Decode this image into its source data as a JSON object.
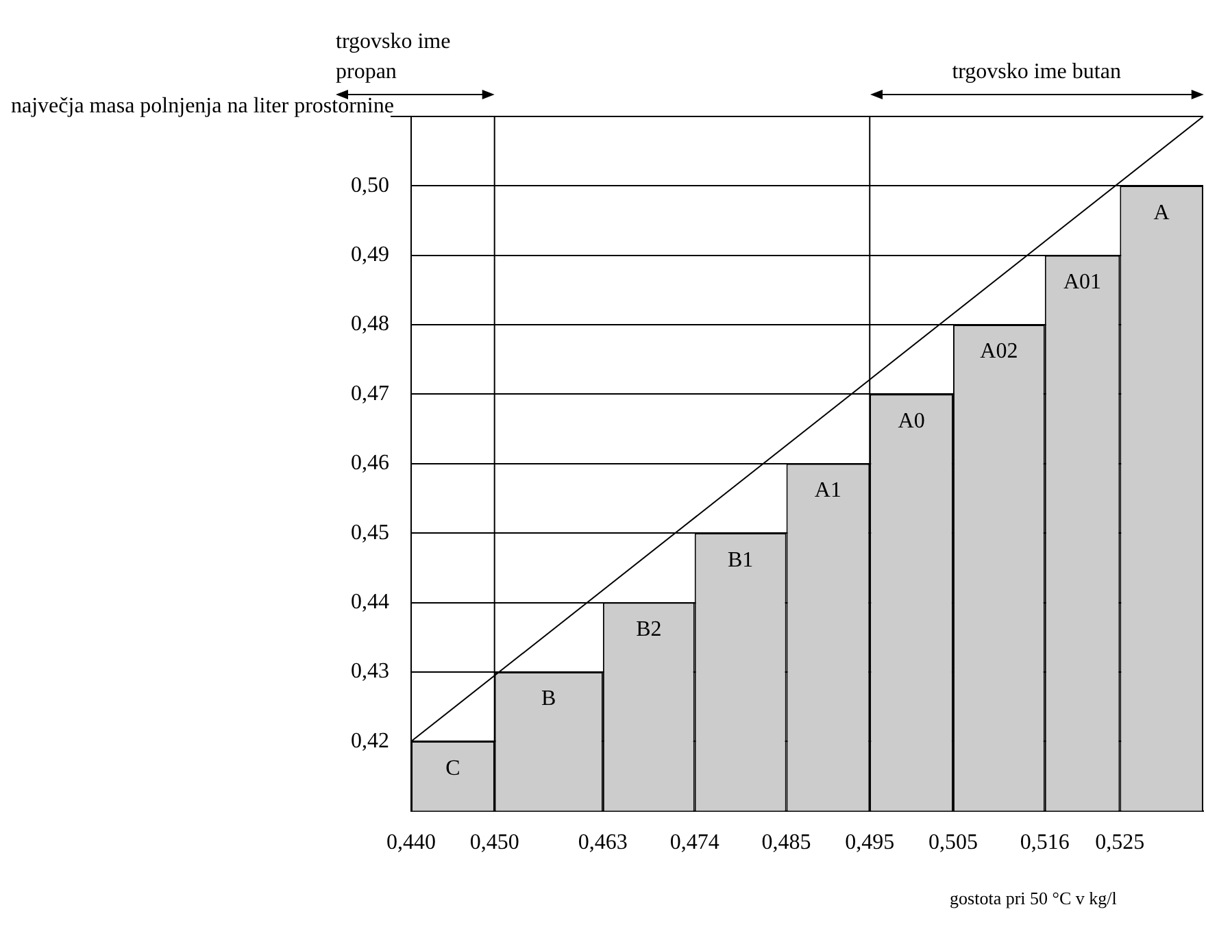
{
  "chart_data": {
    "type": "histogram",
    "title": "največja masa polnjenja na liter prostornine",
    "xlabel": "gostota pri 50 °C v kg/l",
    "bins": [
      0.44,
      0.45,
      0.463,
      0.474,
      0.485,
      0.495,
      0.505,
      0.516,
      0.525,
      0.535
    ],
    "values": [
      0.42,
      0.43,
      0.44,
      0.45,
      0.46,
      0.47,
      0.48,
      0.49,
      0.5
    ],
    "color": "#cccccc",
    "series": [
      {
        "type": "line",
        "color": "#000000",
        "x": [
          0.44,
          0.535
        ],
        "values": [
          0.42,
          0.51
        ]
      }
    ],
    "xlim": [
      0.44,
      0.535
    ],
    "xticks": [
      {
        "value": 0.44,
        "label": "0,440"
      },
      {
        "value": 0.45,
        "label": "0,450"
      },
      {
        "value": 0.463,
        "label": "0,463"
      },
      {
        "value": 0.474,
        "label": "0,474"
      },
      {
        "value": 0.485,
        "label": "0,485"
      },
      {
        "value": 0.495,
        "label": "0,495"
      },
      {
        "value": 0.505,
        "label": "0,505"
      },
      {
        "value": 0.516,
        "label": "0,516"
      },
      {
        "value": 0.525,
        "label": "0,525"
      }
    ],
    "ylim": [
      0.41,
      0.51
    ],
    "yticks": [
      {
        "value": 0.42,
        "label": "0,42"
      },
      {
        "value": 0.43,
        "label": "0,43"
      },
      {
        "value": 0.44,
        "label": "0,44"
      },
      {
        "value": 0.45,
        "label": "0,45"
      },
      {
        "value": 0.46,
        "label": "0,46"
      },
      {
        "value": 0.47,
        "label": "0,47"
      },
      {
        "value": 0.48,
        "label": "0,48"
      },
      {
        "value": 0.49,
        "label": "0,49"
      },
      {
        "value": 0.5,
        "label": "0,50"
      }
    ],
    "grid": "y",
    "ref_lines": [
      {
        "axis": "x",
        "value": 0.45
      },
      {
        "axis": "x",
        "value": 0.495
      }
    ],
    "annotations": [
      "trgovsko ime propan",
      "trgovsko ime butan",
      {
        "text": "C",
        "x": 0.445,
        "y": 0.42
      },
      {
        "text": "B",
        "x": 0.4565,
        "y": 0.43
      },
      {
        "text": "B2",
        "x": 0.4685,
        "y": 0.44
      },
      {
        "text": "B1",
        "x": 0.4795,
        "y": 0.45
      },
      {
        "text": "A1",
        "x": 0.49,
        "y": 0.46
      },
      {
        "text": "A0",
        "x": 0.5,
        "y": 0.47
      },
      {
        "text": "A02",
        "x": 0.5105,
        "y": 0.48
      },
      {
        "text": "A01",
        "x": 0.5205,
        "y": 0.49
      },
      {
        "text": "A",
        "x": 0.53,
        "y": 0.5
      }
    ]
  }
}
